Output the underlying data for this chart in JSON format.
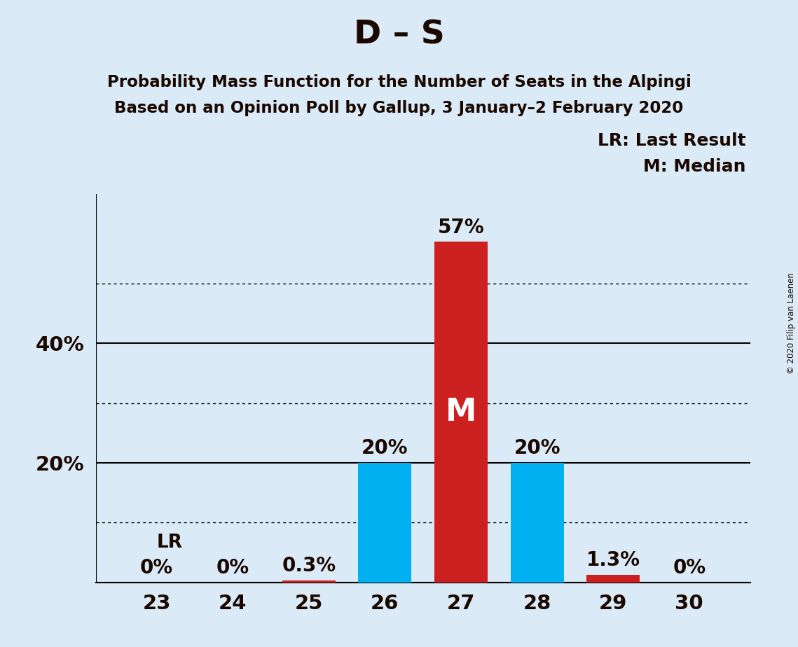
{
  "title": "D – S",
  "subtitle1": "Probability Mass Function for the Number of Seats in the Alpingi",
  "subtitle2": "Based on an Opinion Poll by Gallup, 3 January–2 February 2020",
  "copyright": "© 2020 Filip van Laenen",
  "seats": [
    23,
    24,
    25,
    26,
    27,
    28,
    29,
    30
  ],
  "probabilities": [
    0.0,
    0.0,
    0.3,
    20.0,
    57.0,
    20.0,
    1.3,
    0.0
  ],
  "bar_colors": [
    "#00b0f0",
    "#00b0f0",
    "#cc2020",
    "#00b0f0",
    "#cc2020",
    "#00b0f0",
    "#cc2020",
    "#00b0f0"
  ],
  "median_seat": 27,
  "lr_seat": 23,
  "background_color": "#daeaf7",
  "yticks_solid": [
    0,
    20,
    40
  ],
  "yticks_dotted": [
    10,
    30,
    50
  ],
  "ymax": 65,
  "bar_width": 0.7,
  "title_fontsize": 34,
  "subtitle_fontsize": 16.5,
  "tick_fontsize": 21,
  "annotation_fontsize": 20,
  "legend_fontsize": 18,
  "M_fontsize": 32,
  "lr_fontsize": 19,
  "text_color": "#1a0800"
}
